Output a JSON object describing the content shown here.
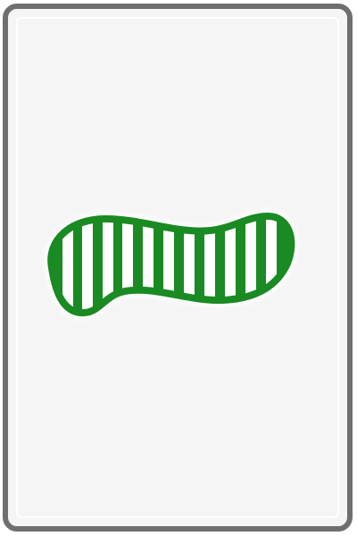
{
  "card": {
    "number": 1,
    "shape": "squiggle",
    "color": "green",
    "shading": "striped",
    "colors": {
      "symbol": "#1a8a22",
      "frame": "#6f6f6f",
      "face": "#f6f5f6",
      "stripe_fill": "#ffffff"
    }
  }
}
